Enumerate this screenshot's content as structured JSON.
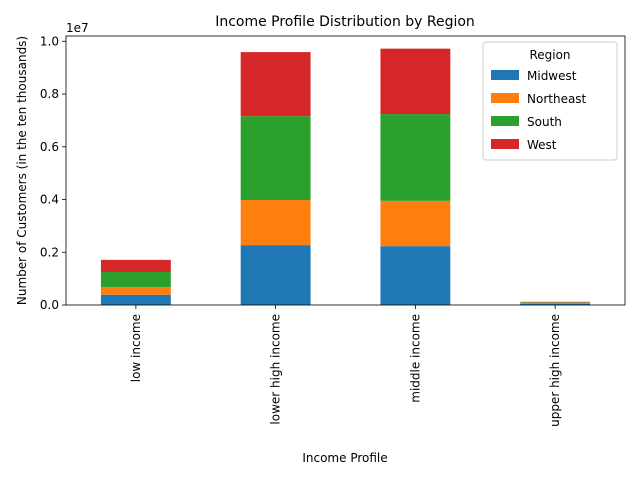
{
  "chart_data": {
    "type": "bar",
    "stacked": true,
    "title": "Income Profile Distribution by Region",
    "xlabel": "Income Profile",
    "ylabel": "Number of Customers (in the ten thousands)",
    "y_offset_label": "1e7",
    "categories": [
      "low income",
      "lower high income",
      "middle income",
      "upper high income"
    ],
    "ylim": [
      0,
      10200000
    ],
    "yticks": [
      0,
      2000000,
      4000000,
      6000000,
      8000000,
      10000000
    ],
    "ytick_labels": [
      "0.0",
      "0.2",
      "0.4",
      "0.6",
      "0.8",
      "1.0"
    ],
    "legend": {
      "title": "Region",
      "position": "top-right"
    },
    "series": [
      {
        "name": "Midwest",
        "color": "#1f77b4",
        "values": [
          390000,
          2270000,
          2230000,
          50000
        ]
      },
      {
        "name": "Northeast",
        "color": "#ff7f0e",
        "values": [
          290000,
          1710000,
          1720000,
          30000
        ]
      },
      {
        "name": "South",
        "color": "#2ca02c",
        "values": [
          570000,
          3180000,
          3290000,
          20000
        ]
      },
      {
        "name": "West",
        "color": "#d62728",
        "values": [
          460000,
          2430000,
          2480000,
          20000
        ]
      }
    ]
  }
}
